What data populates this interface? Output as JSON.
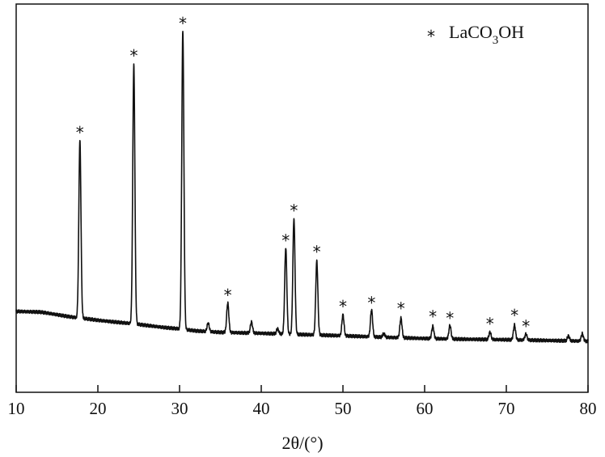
{
  "chart_data": {
    "type": "line",
    "xlabel": "2θ/(°)",
    "xlim": [
      10,
      80
    ],
    "x_ticks": [
      10,
      20,
      30,
      40,
      50,
      60,
      70,
      80
    ],
    "yticks_shown": false,
    "grid": false,
    "legend": {
      "position": "top-right",
      "marker": "*",
      "label_main": "LaCO",
      "label_sub": "3",
      "label_tail": "OH"
    },
    "series": [
      {
        "name": "LaCO3OH",
        "color": "#111111",
        "baseline": [
          [
            10,
            0.115
          ],
          [
            13,
            0.112
          ],
          [
            14,
            0.107
          ],
          [
            16,
            0.096
          ],
          [
            17.2,
            0.09
          ],
          [
            18.6,
            0.085
          ],
          [
            20,
            0.079
          ],
          [
            22,
            0.072
          ],
          [
            24,
            0.066
          ],
          [
            26,
            0.058
          ],
          [
            28,
            0.05
          ],
          [
            30,
            0.044
          ],
          [
            32,
            0.036
          ],
          [
            35,
            0.03
          ],
          [
            40,
            0.026
          ],
          [
            45,
            0.021
          ],
          [
            50,
            0.016
          ],
          [
            55,
            0.01
          ],
          [
            60,
            0.005
          ],
          [
            65,
            0.002
          ],
          [
            70,
            0.0
          ],
          [
            75,
            -0.003
          ],
          [
            80,
            -0.006
          ]
        ],
        "peaks": [
          {
            "x": 17.8,
            "height": 0.72,
            "marked": true
          },
          {
            "x": 24.4,
            "height": 1.05,
            "marked": true
          },
          {
            "x": 30.4,
            "height": 1.21,
            "marked": true
          },
          {
            "x": 33.5,
            "height": 0.035,
            "marked": false
          },
          {
            "x": 35.9,
            "height": 0.12,
            "marked": true
          },
          {
            "x": 38.8,
            "height": 0.045,
            "marked": false
          },
          {
            "x": 42.0,
            "height": 0.02,
            "marked": false
          },
          {
            "x": 43.0,
            "height": 0.35,
            "marked": true
          },
          {
            "x": 44.0,
            "height": 0.47,
            "marked": true
          },
          {
            "x": 46.8,
            "height": 0.3,
            "marked": true
          },
          {
            "x": 50.0,
            "height": 0.085,
            "marked": true
          },
          {
            "x": 53.5,
            "height": 0.11,
            "marked": true
          },
          {
            "x": 55.0,
            "height": 0.015,
            "marked": false
          },
          {
            "x": 57.1,
            "height": 0.08,
            "marked": true
          },
          {
            "x": 61.0,
            "height": 0.05,
            "marked": true
          },
          {
            "x": 63.1,
            "height": 0.055,
            "marked": true
          },
          {
            "x": 68.0,
            "height": 0.03,
            "marked": true
          },
          {
            "x": 71.0,
            "height": 0.06,
            "marked": true
          },
          {
            "x": 72.4,
            "height": 0.025,
            "marked": true
          },
          {
            "x": 77.6,
            "height": 0.02,
            "marked": false
          },
          {
            "x": 79.3,
            "height": 0.03,
            "marked": false
          }
        ]
      }
    ]
  }
}
